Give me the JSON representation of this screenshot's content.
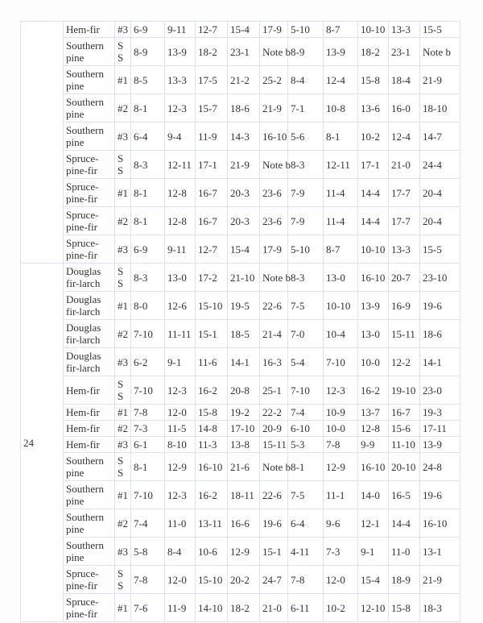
{
  "colors": {
    "border": "#dce3ee",
    "text": "#333333",
    "cell_background": "#ffffff"
  },
  "table": {
    "groups": [
      {
        "spacing": "",
        "rows": [
          {
            "species": "Hem-fir",
            "grade": "#3",
            "values": [
              "6-9",
              "9-11",
              "12-7",
              "15-4",
              "17-9",
              "5-10",
              "8-7",
              "10-10",
              "13-3",
              "15-5"
            ]
          },
          {
            "species": "Southern pine",
            "grade": "SS",
            "values": [
              "8-9",
              "13-9",
              "18-2",
              "23-1",
              "Note b",
              "8-9",
              "13-9",
              "18-2",
              "23-1",
              "Note b"
            ]
          },
          {
            "species": "Southern pine",
            "grade": "#1",
            "values": [
              "8-5",
              "13-3",
              "17-5",
              "21-2",
              "25-2",
              "8-4",
              "12-4",
              "15-8",
              "18-4",
              "21-9"
            ]
          },
          {
            "species": "Southern pine",
            "grade": "#2",
            "values": [
              "8-1",
              "12-3",
              "15-7",
              "18-6",
              "21-9",
              "7-1",
              "10-8",
              "13-6",
              "16-0",
              "18-10"
            ]
          },
          {
            "species": "Southern pine",
            "grade": "#3",
            "values": [
              "6-4",
              "9-4",
              "11-9",
              "14-3",
              "16-10",
              "5-6",
              "8-1",
              "10-2",
              "12-4",
              "14-7"
            ]
          },
          {
            "species": "Spruce-pine-fir",
            "grade": "SS",
            "values": [
              "8-3",
              "12-11",
              "17-1",
              "21-9",
              "Note b",
              "8-3",
              "12-11",
              "17-1",
              "21-0",
              "24-4"
            ]
          },
          {
            "species": "Spruce-pine-fir",
            "grade": "#1",
            "values": [
              "8-1",
              "12-8",
              "16-7",
              "20-3",
              "23-6",
              "7-9",
              "11-4",
              "14-4",
              "17-7",
              "20-4"
            ]
          },
          {
            "species": "Spruce-pine-fir",
            "grade": "#2",
            "values": [
              "8-1",
              "12-8",
              "16-7",
              "20-3",
              "23-6",
              "7-9",
              "11-4",
              "14-4",
              "17-7",
              "20-4"
            ]
          },
          {
            "species": "Spruce-pine-fir",
            "grade": "#3",
            "values": [
              "6-9",
              "9-11",
              "12-7",
              "15-4",
              "17-9",
              "5-10",
              "8-7",
              "10-10",
              "13-3",
              "15-5"
            ]
          }
        ]
      },
      {
        "spacing": "24",
        "rows": [
          {
            "species": "Douglas fir-larch",
            "grade": "SS",
            "values": [
              "8-3",
              "13-0",
              "17-2",
              "21-10",
              "Note b",
              "8-3",
              "13-0",
              "16-10",
              "20-7",
              "23-10"
            ]
          },
          {
            "species": "Douglas fir-larch",
            "grade": "#1",
            "values": [
              "8-0",
              "12-6",
              "15-10",
              "19-5",
              "22-6",
              "7-5",
              "10-10",
              "13-9",
              "16-9",
              "19-6"
            ]
          },
          {
            "species": "Douglas fir-larch",
            "grade": "#2",
            "values": [
              "7-10",
              "11-11",
              "15-1",
              "18-5",
              "21-4",
              "7-0",
              "10-4",
              "13-0",
              "15-11",
              "18-6"
            ]
          },
          {
            "species": "Douglas fir-larch",
            "grade": "#3",
            "values": [
              "6-2",
              "9-1",
              "11-6",
              "14-1",
              "16-3",
              "5-4",
              "7-10",
              "10-0",
              "12-2",
              "14-1"
            ]
          },
          {
            "species": "Hem-fir",
            "grade": "SS",
            "values": [
              "7-10",
              "12-3",
              "16-2",
              "20-8",
              "25-1",
              "7-10",
              "12-3",
              "16-2",
              "19-10",
              "23-0"
            ]
          },
          {
            "species": "Hem-fir",
            "grade": "#1",
            "values": [
              "7-8",
              "12-0",
              "15-8",
              "19-2",
              "22-2",
              "7-4",
              "10-9",
              "13-7",
              "16-7",
              "19-3"
            ]
          },
          {
            "species": "Hem-fir",
            "grade": "#2",
            "values": [
              "7-3",
              "11-5",
              "14-8",
              "17-10",
              "20-9",
              "6-10",
              "10-0",
              "12-8",
              "15-6",
              "17-11"
            ]
          },
          {
            "species": "Hem-fir",
            "grade": "#3",
            "values": [
              "6-1",
              "8-10",
              "11-3",
              "13-8",
              "15-11",
              "5-3",
              "7-8",
              "9-9",
              "11-10",
              "13-9"
            ]
          },
          {
            "species": "Southern pine",
            "grade": "SS",
            "values": [
              "8-1",
              "12-9",
              "16-10",
              "21-6",
              "Note b",
              "8-1",
              "12-9",
              "16-10",
              "20-10",
              "24-8"
            ]
          },
          {
            "species": "Southern pine",
            "grade": "#1",
            "values": [
              "7-10",
              "12-3",
              "16-2",
              "18-11",
              "22-6",
              "7-5",
              "11-1",
              "14-0",
              "16-5",
              "19-6"
            ]
          },
          {
            "species": "Southern pine",
            "grade": "#2",
            "values": [
              "7-4",
              "11-0",
              "13-11",
              "16-6",
              "19-6",
              "6-4",
              "9-6",
              "12-1",
              "14-4",
              "16-10"
            ]
          },
          {
            "species": "Southern pine",
            "grade": "#3",
            "values": [
              "5-8",
              "8-4",
              "10-6",
              "12-9",
              "15-1",
              "4-11",
              "7-3",
              "9-1",
              "11-0",
              "13-1"
            ]
          },
          {
            "species": "Spruce-pine-fir",
            "grade": "SS",
            "values": [
              "7-8",
              "12-0",
              "15-10",
              "20-2",
              "24-7",
              "7-8",
              "12-0",
              "15-4",
              "18-9",
              "21-9"
            ]
          },
          {
            "species": "Spruce-pine-fir",
            "grade": "#1",
            "values": [
              "7-6",
              "11-9",
              "14-10",
              "18-2",
              "21-0",
              "6-11",
              "10-2",
              "12-10",
              "15-8",
              "18-3"
            ]
          }
        ]
      }
    ]
  }
}
